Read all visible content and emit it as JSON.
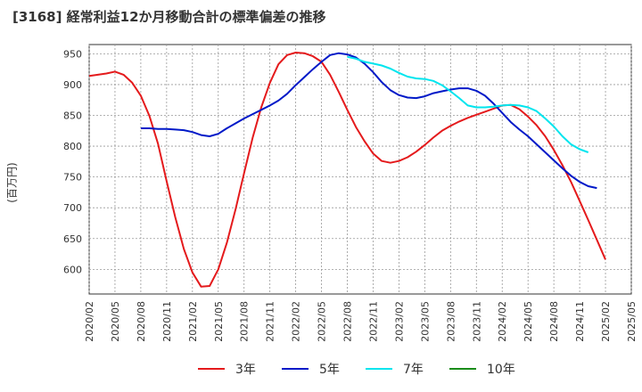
{
  "title": "[3168]  経常利益12か月移動合計の標準偏差の推移",
  "ylabel": "(百万円)",
  "chart_data": {
    "type": "line",
    "title": "[3168]  経常利益12か月移動合計の標準偏差の推移",
    "ylabel": "(百万円)",
    "xlabel": "",
    "ylim": [
      560,
      965
    ],
    "yticks": [
      600,
      650,
      700,
      750,
      800,
      850,
      900,
      950
    ],
    "xticks": [
      "2020/02",
      "2020/05",
      "2020/08",
      "2020/11",
      "2021/02",
      "2021/05",
      "2021/08",
      "2021/11",
      "2022/02",
      "2022/05",
      "2022/08",
      "2022/11",
      "2023/02",
      "2023/05",
      "2023/08",
      "2023/11",
      "2024/02",
      "2024/05",
      "2024/08",
      "2024/11",
      "2025/02",
      "2025/05"
    ],
    "x_start": "2020/02",
    "grid": true,
    "legend_position": "bottom",
    "series": [
      {
        "name": "3年",
        "color": "#e41a1c",
        "start": "2020/02",
        "values": [
          914,
          916,
          918,
          921,
          916,
          903,
          882,
          849,
          804,
          743,
          685,
          633,
          595,
          572,
          573,
          600,
          643,
          697,
          756,
          814,
          863,
          903,
          933,
          948,
          952,
          951,
          946,
          937,
          916,
          888,
          859,
          831,
          808,
          788,
          776,
          773,
          776,
          782,
          791,
          802,
          814,
          825,
          833,
          840,
          846,
          851,
          856,
          861,
          866,
          867,
          860,
          848,
          834,
          816,
          794,
          769,
          742,
          711,
          680,
          648,
          616
        ]
      },
      {
        "name": "5年",
        "color": "#0019c8",
        "start": "2020/08",
        "values": [
          829,
          829,
          828,
          828,
          827,
          826,
          823,
          818,
          816,
          820,
          829,
          837,
          845,
          852,
          859,
          866,
          874,
          885,
          899,
          912,
          925,
          937,
          948,
          951,
          949,
          944,
          934,
          920,
          904,
          891,
          883,
          879,
          878,
          881,
          886,
          889,
          892,
          894,
          894,
          890,
          882,
          869,
          854,
          839,
          827,
          816,
          803,
          790,
          777,
          764,
          752,
          742,
          735,
          732
        ]
      },
      {
        "name": "7年",
        "color": "#00e5ee",
        "start": "2022/08",
        "values": [
          945,
          942,
          937,
          934,
          931,
          926,
          919,
          913,
          910,
          909,
          906,
          899,
          889,
          878,
          866,
          863,
          863,
          864,
          866,
          867,
          866,
          863,
          857,
          845,
          832,
          816,
          803,
          795,
          790
        ]
      },
      {
        "name": "10年",
        "color": "#1a8c1a",
        "start": "2020/02",
        "values": []
      }
    ]
  }
}
